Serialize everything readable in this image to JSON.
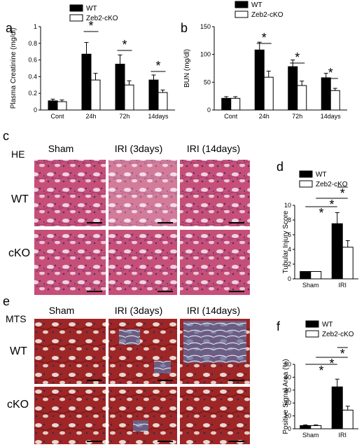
{
  "panels": {
    "a": {
      "label": "a"
    },
    "b": {
      "label": "b"
    },
    "c": {
      "label": "c"
    },
    "d": {
      "label": "d"
    },
    "e": {
      "label": "e"
    },
    "f": {
      "label": "f"
    }
  },
  "colors": {
    "wt": "#000000",
    "cko": "#ffffff",
    "stroke": "#000000"
  },
  "micro_c": {
    "stain": "HE",
    "columns": [
      "Sham",
      "IRI (3days)",
      "IRI (14days)"
    ],
    "rows": [
      "WT",
      "cKO"
    ]
  },
  "micro_e": {
    "stain": "MTS",
    "columns": [
      "Sham",
      "IRI (3days)",
      "IRI (14days)"
    ],
    "rows": [
      "WT",
      "cKO"
    ]
  },
  "chart_data": [
    {
      "panel": "a",
      "type": "bar",
      "categories": [
        "Cont",
        "24h",
        "72h",
        "14days"
      ],
      "series": [
        {
          "name": "WT",
          "values": [
            0.11,
            0.67,
            0.55,
            0.36
          ],
          "errors": [
            0.02,
            0.14,
            0.11,
            0.06
          ]
        },
        {
          "name": "Zeb2-cKO",
          "values": [
            0.1,
            0.36,
            0.3,
            0.21
          ],
          "errors": [
            0.02,
            0.08,
            0.05,
            0.03
          ]
        }
      ],
      "ylabel": "Plasma Creatinine (mg/dl)",
      "xlabel": "",
      "ylim": [
        0,
        1
      ],
      "yticks": [
        "0",
        "0.2",
        "0.4",
        "0.6",
        "0.8",
        "1"
      ],
      "significance": [
        "*",
        "*",
        "*"
      ]
    },
    {
      "panel": "b",
      "type": "bar",
      "categories": [
        "Cont",
        "24h",
        "72h",
        "14days"
      ],
      "series": [
        {
          "name": "WT",
          "values": [
            21,
            108,
            78,
            58
          ],
          "errors": [
            3,
            14,
            12,
            8
          ]
        },
        {
          "name": "Zeb2-cKO",
          "values": [
            21,
            59,
            44,
            35
          ],
          "errors": [
            3,
            11,
            8,
            4
          ]
        }
      ],
      "ylabel": "BUN (mg/dl)",
      "xlabel": "",
      "ylim": [
        0,
        150
      ],
      "yticks": [
        "0",
        "50",
        "100",
        "150"
      ],
      "significance": [
        "*",
        "*",
        "*"
      ]
    },
    {
      "panel": "d",
      "type": "bar",
      "categories": [
        "Sham",
        "IRI"
      ],
      "series": [
        {
          "name": "WT",
          "values": [
            1.0,
            7.5
          ],
          "errors": [
            0,
            1.5
          ]
        },
        {
          "name": "Zeb2-cKO",
          "values": [
            1.0,
            4.3
          ],
          "errors": [
            0,
            0.9
          ]
        }
      ],
      "ylabel": "Tubular Injury Score",
      "xlabel": "",
      "ylim": [
        0,
        10
      ],
      "yticks": [
        "0",
        "2",
        "4",
        "6",
        "8",
        "10"
      ],
      "significance": [
        "*",
        "*",
        "*"
      ]
    },
    {
      "panel": "f",
      "type": "bar",
      "categories": [
        "Sham",
        "IRI"
      ],
      "series": [
        {
          "name": "WT",
          "values": [
            2.5,
            32.5
          ],
          "errors": [
            0.5,
            6
          ]
        },
        {
          "name": "Zeb2-cKO",
          "values": [
            2.5,
            14.5
          ],
          "errors": [
            0.5,
            3
          ]
        }
      ],
      "ylabel": "Positive Signal Area (%)",
      "xlabel": "",
      "ylim": [
        0,
        50
      ],
      "yticks": [
        "0",
        "10",
        "20",
        "30",
        "40",
        "50"
      ],
      "significance": [
        "*",
        "*",
        "*"
      ]
    }
  ]
}
